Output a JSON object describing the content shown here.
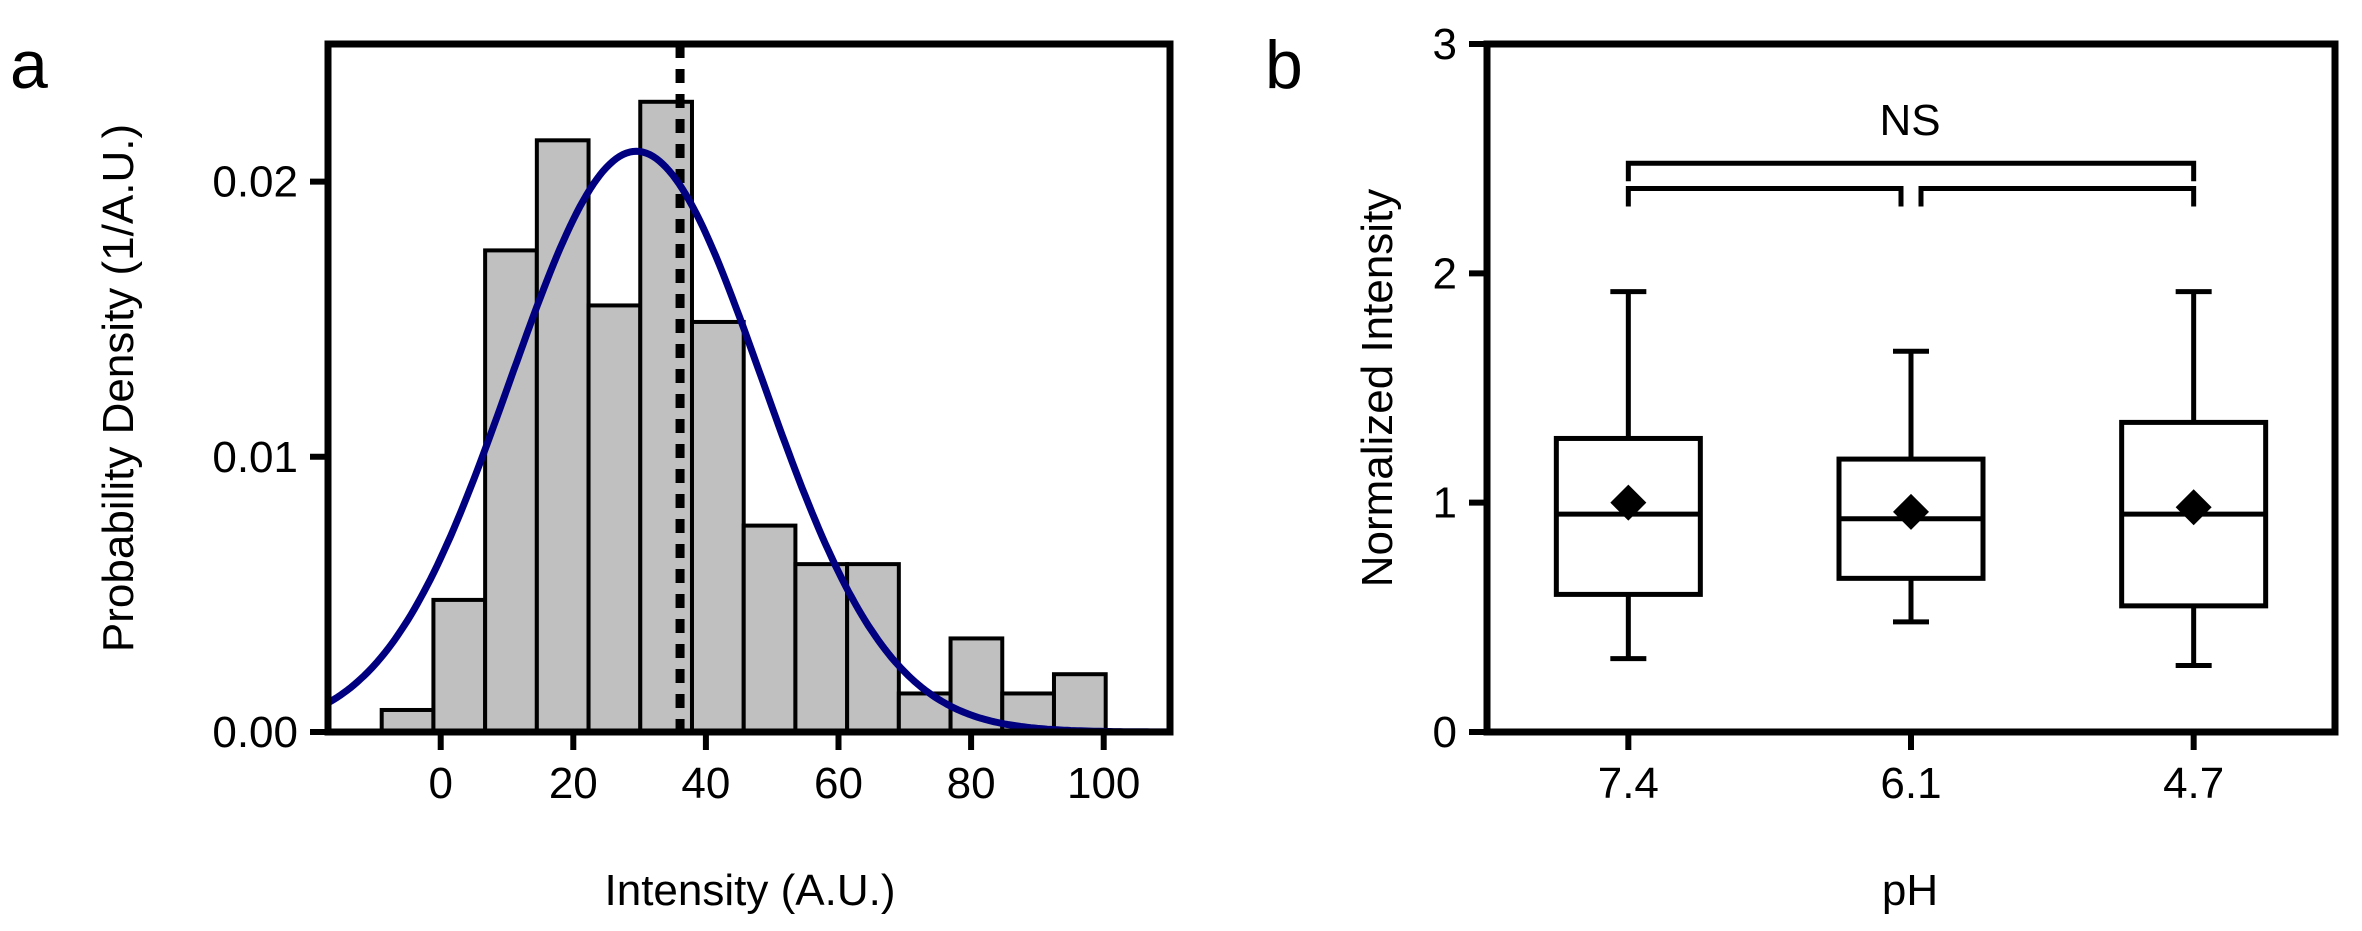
{
  "colors": {
    "bar_fill": "#c0c0c0",
    "curve": "#000080",
    "ink": "#000000"
  },
  "chart_data": [
    {
      "panel_label": "a",
      "type": "bar",
      "subtype": "histogram with gaussian fit",
      "xlabel": "Intensity (A.U.)",
      "ylabel": "Probability Density (1/A.U.)",
      "xlim": [
        -17,
        110
      ],
      "ylim": [
        0,
        0.025
      ],
      "x_ticks": [
        0,
        20,
        40,
        60,
        80,
        100
      ],
      "x_tick_labels": [
        "0",
        "20",
        "40",
        "60",
        "80",
        "100"
      ],
      "y_ticks": [
        0,
        0.01,
        0.02
      ],
      "y_tick_labels": [
        "0.00",
        "0.01",
        "0.02"
      ],
      "bin_width": 7.8,
      "bins": [
        {
          "left": -8.9,
          "value": 0.0008
        },
        {
          "left": -1.1,
          "value": 0.0048
        },
        {
          "left": 6.7,
          "value": 0.0175
        },
        {
          "left": 14.5,
          "value": 0.0215
        },
        {
          "left": 22.3,
          "value": 0.0155
        },
        {
          "left": 30.1,
          "value": 0.0229
        },
        {
          "left": 37.9,
          "value": 0.0149
        },
        {
          "left": 45.7,
          "value": 0.0075
        },
        {
          "left": 53.5,
          "value": 0.0061
        },
        {
          "left": 61.3,
          "value": 0.0061
        },
        {
          "left": 69.1,
          "value": 0.0014
        },
        {
          "left": 76.9,
          "value": 0.0034
        },
        {
          "left": 84.7,
          "value": 0.0014
        },
        {
          "left": 92.5,
          "value": 0.0021
        }
      ],
      "fit": {
        "type": "gaussian",
        "mean": 29.5,
        "sd": 19.0,
        "peak": 0.0211
      },
      "reference_line": {
        "x": 36.1,
        "style": "dotted"
      }
    },
    {
      "panel_label": "b",
      "type": "box",
      "xlabel": "pH",
      "ylabel": "Normalized Intensity",
      "ylim": [
        0,
        3
      ],
      "y_ticks": [
        0,
        1,
        2,
        3
      ],
      "y_tick_labels": [
        "0",
        "1",
        "2",
        "3"
      ],
      "categories": [
        "7.4",
        "6.1",
        "4.7"
      ],
      "boxes": [
        {
          "category": "7.4",
          "whisker_low": 0.32,
          "q1": 0.6,
          "median": 0.95,
          "q3": 1.28,
          "whisker_high": 1.92,
          "mean": 1.0
        },
        {
          "category": "6.1",
          "whisker_low": 0.48,
          "q1": 0.67,
          "median": 0.93,
          "q3": 1.19,
          "whisker_high": 1.66,
          "mean": 0.96
        },
        {
          "category": "4.7",
          "whisker_low": 0.29,
          "q1": 0.55,
          "median": 0.95,
          "q3": 1.35,
          "whisker_high": 1.92,
          "mean": 0.98
        }
      ],
      "significance": {
        "label": "NS",
        "brackets": [
          {
            "from": "7.4",
            "to": "4.7",
            "y": 2.48
          },
          {
            "from": "7.4",
            "to": "6.1",
            "y": 2.37
          },
          {
            "from": "6.1",
            "to": "4.7",
            "y": 2.37
          }
        ]
      }
    }
  ]
}
